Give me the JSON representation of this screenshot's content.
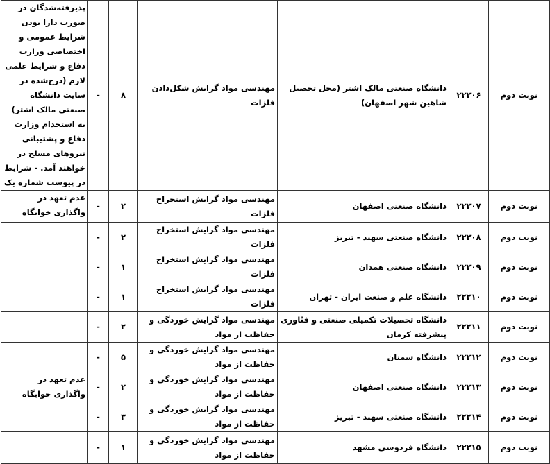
{
  "rows": [
    {
      "turn": "نوبت دوم",
      "code": "۲۲۲۰۶",
      "university": "دانشگاه صنعتی مالک اشتر (محل تحصیل شاهین شهر اصفهان)",
      "major": "مهندسی مواد گرایش شکل‌دادن فلزات",
      "capacity": "۸",
      "dash": "-",
      "notes": "پذیرفته‌شدگان در صورت دارا بودن شرایط عمومی و اختصاصی وزارت دفاع و شرایط علمی لازم (درج‌شده در سایت دانشگاه صنعتی مالک اشتر) به استخدام وزارت دفاع و پشتیبانی نیروهای مسلح در خواهند آمد. - شرایط در پیوست شماره یک"
    },
    {
      "turn": "نوبت دوم",
      "code": "۲۲۲۰۷",
      "university": "دانشگاه صنعتی اصفهان",
      "major": "مهندسی مواد گرایش استخراج فلزات",
      "capacity": "۲",
      "dash": "-",
      "notes": "عدم تعهد در واگذاری خوابگاه"
    },
    {
      "turn": "نوبت دوم",
      "code": "۲۲۲۰۸",
      "university": "دانشگاه صنعتی سهند - تبریز",
      "major": "مهندسی مواد گرایش استخراج فلزات",
      "capacity": "۲",
      "dash": "-",
      "notes": ""
    },
    {
      "turn": "نوبت دوم",
      "code": "۲۲۲۰۹",
      "university": "دانشگاه صنعتی همدان",
      "major": "مهندسی مواد گرایش استخراج فلزات",
      "capacity": "۱",
      "dash": "-",
      "notes": ""
    },
    {
      "turn": "نوبت دوم",
      "code": "۲۲۲۱۰",
      "university": "دانشگاه علم و صنعت ایران - تهران",
      "major": "مهندسی مواد گرایش استخراج فلزات",
      "capacity": "۱",
      "dash": "-",
      "notes": ""
    },
    {
      "turn": "نوبت دوم",
      "code": "۲۲۲۱۱",
      "university": "دانشگاه تحصیلات تکمیلی صنعتی و فنّاوری پیشرفته کرمان",
      "major": "مهندسی مواد گرایش خوردگی و حفاظت از مواد",
      "capacity": "۲",
      "dash": "-",
      "notes": ""
    },
    {
      "turn": "نوبت دوم",
      "code": "۲۲۲۱۲",
      "university": "دانشگاه سمنان",
      "major": "مهندسی مواد گرایش خوردگی و حفاظت از مواد",
      "capacity": "۵",
      "dash": "-",
      "notes": ""
    },
    {
      "turn": "نوبت دوم",
      "code": "۲۲۲۱۳",
      "university": "دانشگاه صنعتی اصفهان",
      "major": "مهندسی مواد گرایش خوردگی و حفاظت از مواد",
      "capacity": "۲",
      "dash": "-",
      "notes": "عدم تعهد در واگذاری خوابگاه"
    },
    {
      "turn": "نوبت دوم",
      "code": "۲۲۲۱۴",
      "university": "دانشگاه صنعتی سهند - تبریز",
      "major": "مهندسی مواد گرایش خوردگی و حفاظت از مواد",
      "capacity": "۳",
      "dash": "-",
      "notes": ""
    },
    {
      "turn": "نوبت دوم",
      "code": "۲۲۲۱۵",
      "university": "دانشگاه فردوسی مشهد",
      "major": "مهندسی مواد گرایش خوردگی و حفاظت از مواد",
      "capacity": "۱",
      "dash": "-",
      "notes": ""
    }
  ]
}
